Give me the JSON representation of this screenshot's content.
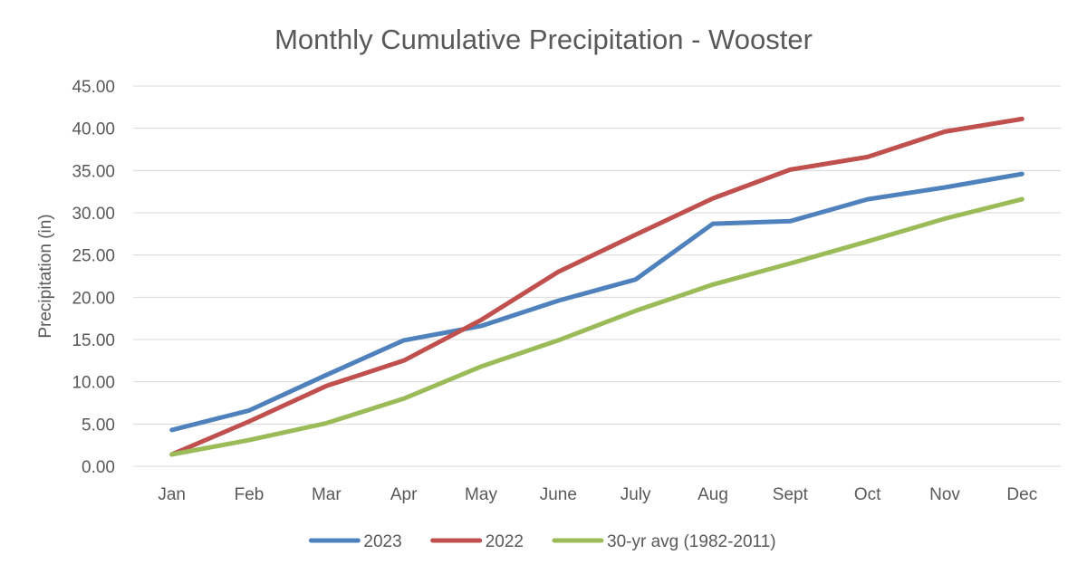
{
  "chart_data": {
    "type": "line",
    "title": "Monthly Cumulative Precipitation - Wooster",
    "xlabel": "",
    "ylabel": "Precipitation (in)",
    "categories": [
      "Jan",
      "Feb",
      "Mar",
      "Apr",
      "May",
      "June",
      "July",
      "Aug",
      "Sept",
      "Oct",
      "Nov",
      "Dec"
    ],
    "ylim": [
      0,
      45
    ],
    "yticks": [
      "0.00",
      "5.00",
      "10.00",
      "15.00",
      "20.00",
      "25.00",
      "30.00",
      "35.00",
      "40.00",
      "45.00"
    ],
    "grid": true,
    "legend_position": "bottom",
    "series": [
      {
        "name": "2023",
        "color": "#4f81bd",
        "values": [
          4.3,
          6.6,
          10.8,
          14.9,
          16.6,
          19.6,
          22.1,
          28.7,
          29.0,
          31.6,
          33.0,
          34.6
        ]
      },
      {
        "name": "2022",
        "color": "#c0504d",
        "values": [
          1.4,
          5.3,
          9.5,
          12.5,
          17.3,
          23.0,
          27.4,
          31.7,
          35.1,
          36.6,
          39.6,
          41.1
        ]
      },
      {
        "name": "30-yr avg (1982-2011)",
        "color": "#9bbb59",
        "values": [
          1.4,
          3.1,
          5.1,
          8.0,
          11.8,
          14.9,
          18.4,
          21.5,
          24.0,
          26.6,
          29.3,
          31.6
        ]
      }
    ]
  }
}
